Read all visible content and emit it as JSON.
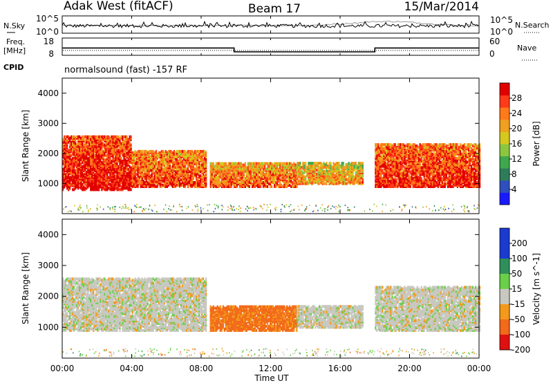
{
  "header": {
    "station": "Adak West (fitACF)",
    "beam": "Beam 17",
    "date": "15/Mar/2014"
  },
  "noise_panel": {
    "left_label": "N.Sky",
    "right_label": "N.Search",
    "left_ticks": [
      "10^5",
      "10^0"
    ],
    "right_ticks": [
      "10^5",
      "10^0"
    ]
  },
  "freq_panel": {
    "left_label_1": "Freq.",
    "left_label_2": "[MHz]",
    "left_ticks": [
      "18",
      "8"
    ],
    "right_label": "Nave",
    "right_ticks": [
      "60",
      "0"
    ]
  },
  "cpid_panel": {
    "label": "CPID",
    "program": "normalsound (fast) -157 RF"
  },
  "x_axis": {
    "label": "Time UT",
    "ticks": [
      "00:00",
      "04:00",
      "08:00",
      "12:00",
      "16:00",
      "20:00",
      "00:00"
    ]
  },
  "colors": {
    "power": [
      "#1a1aff",
      "#2f4fbf",
      "#2e7d5a",
      "#3fa84e",
      "#8cc63f",
      "#d6c81f",
      "#f0a020",
      "#ff7a1a",
      "#ff3a1a",
      "#e00000"
    ],
    "velocity": [
      "#e01010",
      "#f26a1a",
      "#f39a1a",
      "#c8c8c0",
      "#6ad04a",
      "#2f8f5a",
      "#1a3ad0"
    ],
    "ground_scatter": "#b8b8b0"
  },
  "chart_data": [
    {
      "type": "heatmap",
      "title": "",
      "xlabel": "Time UT",
      "ylabel": "Slant Range [km]",
      "x_range_hours": [
        0,
        24
      ],
      "ylim": [
        0,
        4500
      ],
      "y_ticks": [
        1000,
        2000,
        3000,
        4000
      ],
      "colorbar": {
        "label": "Power [dB]",
        "ticks": [
          4,
          8,
          12,
          16,
          20,
          24,
          28
        ],
        "range": [
          0,
          32
        ]
      },
      "scatter_regions": [
        {
          "t": [
            0.0,
            4.0
          ],
          "range_km": [
            800,
            2600
          ],
          "level": 26
        },
        {
          "t": [
            4.0,
            8.3
          ],
          "range_km": [
            900,
            2100
          ],
          "level": 22
        },
        {
          "t": [
            8.5,
            13.5
          ],
          "range_km": [
            900,
            1700
          ],
          "level": 20
        },
        {
          "t": [
            13.5,
            17.3
          ],
          "range_km": [
            1000,
            1700
          ],
          "level": 17
        },
        {
          "t": [
            18.0,
            24.0
          ],
          "range_km": [
            900,
            2300
          ],
          "level": 24
        }
      ]
    },
    {
      "type": "heatmap",
      "title": "",
      "xlabel": "Time UT",
      "ylabel": "Slant Range [km]",
      "x_range_hours": [
        0,
        24
      ],
      "ylim": [
        0,
        4500
      ],
      "y_ticks": [
        1000,
        2000,
        3000,
        4000
      ],
      "colorbar": {
        "label": "Velocity [m s^-1]",
        "ticks": [
          200,
          100,
          50,
          15,
          -15,
          -50,
          -100,
          -200
        ],
        "range": [
          -250,
          250
        ]
      },
      "scatter_regions": [
        {
          "t": [
            0.0,
            8.3
          ],
          "range_km": [
            900,
            2600
          ],
          "velocity": 0
        },
        {
          "t": [
            8.5,
            13.5
          ],
          "range_km": [
            900,
            1700
          ],
          "velocity": -60
        },
        {
          "t": [
            13.5,
            17.3
          ],
          "range_km": [
            1000,
            1700
          ],
          "velocity": 0
        },
        {
          "t": [
            18.0,
            24.0
          ],
          "range_km": [
            900,
            2300
          ],
          "velocity": 0
        }
      ]
    }
  ],
  "freq_series": {
    "times": [
      0,
      9.9,
      9.9,
      18.0,
      18.0,
      24
    ],
    "freq_mhz": [
      14,
      14,
      10.5,
      10.5,
      14,
      14
    ]
  }
}
